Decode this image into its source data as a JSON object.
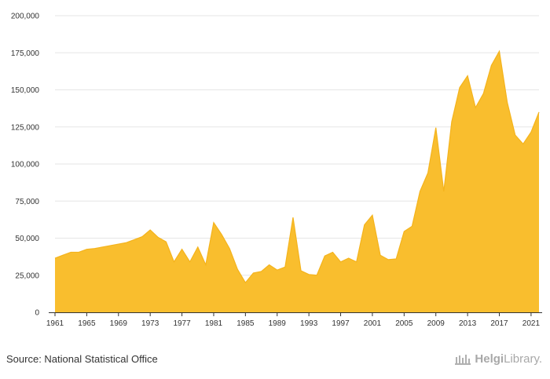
{
  "chart_data": {
    "type": "area",
    "title": "",
    "xlabel": "",
    "ylabel": "",
    "ylim": [
      0,
      200000
    ],
    "yticks": [
      "0",
      "25,000",
      "50,000",
      "75,000",
      "100,000",
      "125,000",
      "150,000",
      "175,000",
      "200,000"
    ],
    "ytick_values": [
      0,
      25000,
      50000,
      75000,
      100000,
      125000,
      150000,
      175000,
      200000
    ],
    "xticks": [
      "1961",
      "1965",
      "1969",
      "1973",
      "1977",
      "1981",
      "1985",
      "1989",
      "1993",
      "1997",
      "2001",
      "2005",
      "2009",
      "2013",
      "2017",
      "2021"
    ],
    "grid": true,
    "legend": "none",
    "color": "#f9be2e",
    "x": [
      1961,
      1962,
      1963,
      1964,
      1965,
      1966,
      1967,
      1968,
      1969,
      1970,
      1971,
      1972,
      1973,
      1974,
      1975,
      1976,
      1977,
      1978,
      1979,
      1980,
      1981,
      1982,
      1983,
      1984,
      1985,
      1986,
      1987,
      1988,
      1989,
      1990,
      1991,
      1992,
      1993,
      1994,
      1995,
      1996,
      1997,
      1998,
      1999,
      2000,
      2001,
      2002,
      2003,
      2004,
      2005,
      2006,
      2007,
      2008,
      2009,
      2010,
      2011,
      2012,
      2013,
      2014,
      2015,
      2016,
      2017,
      2018,
      2019,
      2020,
      2021,
      2022
    ],
    "values": [
      36500,
      38500,
      40500,
      40500,
      42500,
      43000,
      44000,
      45000,
      46000,
      47000,
      49000,
      51000,
      55500,
      50500,
      47500,
      34000,
      42500,
      34000,
      44000,
      32000,
      60500,
      52500,
      43000,
      29000,
      20000,
      26500,
      27500,
      32000,
      28500,
      30500,
      64000,
      28000,
      25500,
      25000,
      38000,
      40500,
      34000,
      36500,
      34000,
      59000,
      65500,
      38500,
      35500,
      36000,
      54500,
      58000,
      81500,
      94000,
      124500,
      81500,
      128500,
      151500,
      159500,
      138000,
      147500,
      166500,
      176000,
      141500,
      119500,
      113500,
      121500,
      135000
    ]
  },
  "footer": {
    "source": "Source: National Statistical Office",
    "brand_part1": "Helgi",
    "brand_part2": "Library."
  }
}
